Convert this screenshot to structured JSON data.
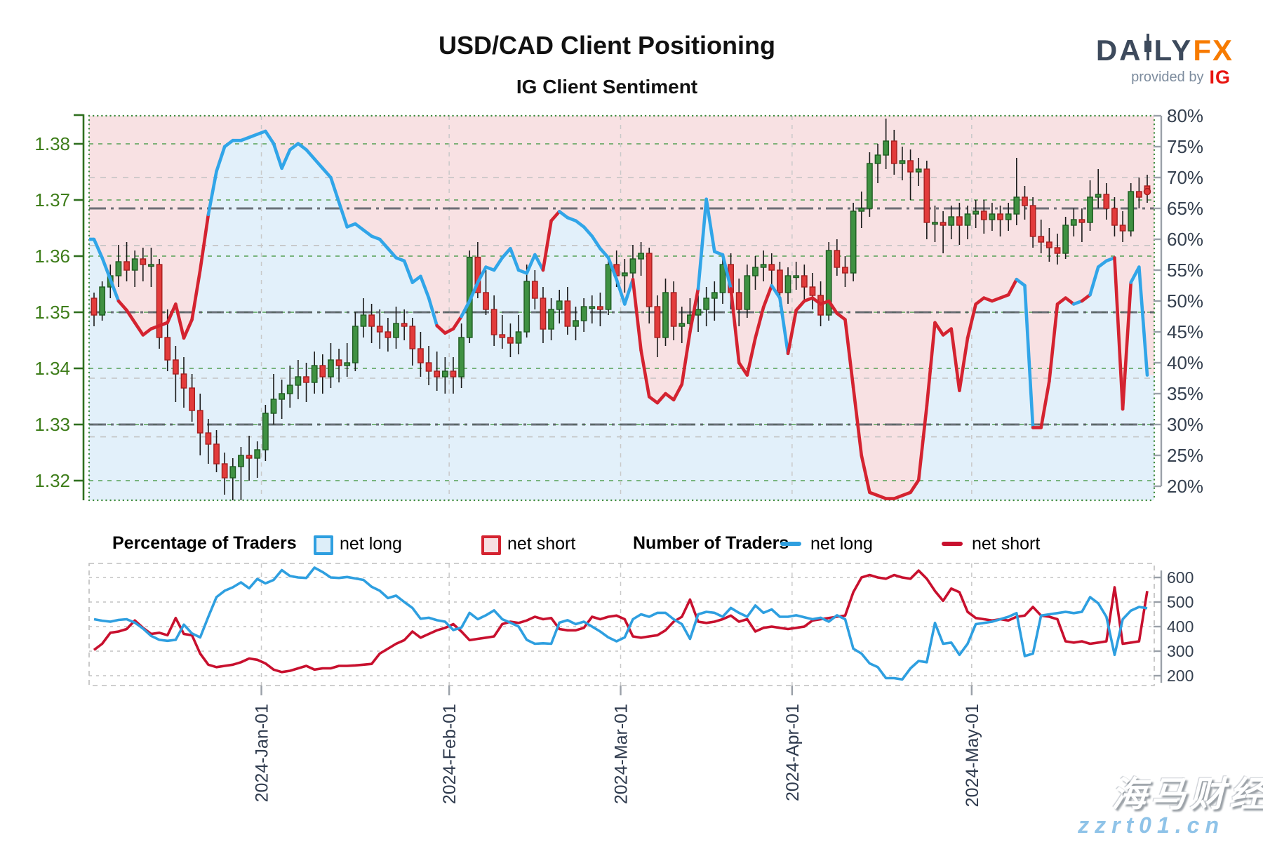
{
  "header": {
    "title": "USD/CAD Client Positioning",
    "subtitle": "IG Client Sentiment"
  },
  "logo": {
    "part1": "DA",
    "part2": "LY",
    "part3": "FX",
    "provided_by": "provided by",
    "ig": "IG"
  },
  "legend": {
    "pct_heading": "Percentage of Traders",
    "pct_long_label": "net long",
    "pct_short_label": "net short",
    "num_heading": "Number of Traders",
    "num_long_label": "net long",
    "num_short_label": "net short"
  },
  "watermark": {
    "line1": "海马财经",
    "line2": "zzrt01.cn"
  },
  "colors": {
    "candle_up_fill": "#3f9142",
    "candle_up_border": "#1e5c21",
    "candle_down_fill": "#e23b3b",
    "candle_down_border": "#a61f1f",
    "wick": "#1a1a1a",
    "sentiment_blue": "#31a5e8",
    "sentiment_red": "#d42330",
    "fill_above": "#f8e1e3",
    "fill_below": "#e2f0fa",
    "count_blue": "#2e9fe0",
    "count_red": "#c8102e",
    "grid_green": "#55a055",
    "grid_grey": "#c3c3c3",
    "ref_dark": "#565b63",
    "axis_green": "#2f6f1f",
    "label_green": "#3e7d1a",
    "label_navy": "#35404f",
    "border_green": "#3c8a3c"
  },
  "chart_data": {
    "type": "candlestick+line",
    "title": "USD/CAD Client Positioning",
    "subtitle": "IG Client Sentiment",
    "x_range": [
      "2023-12-01",
      "2024-05-30"
    ],
    "price_axis": {
      "side": "left",
      "ticks": [
        1.38,
        1.37,
        1.36,
        1.35,
        1.34,
        1.33,
        1.32
      ],
      "tick_labels": [
        "1.38",
        "1.37",
        "1.36",
        "1.35",
        "1.34",
        "1.33",
        "1.32"
      ]
    },
    "percent_axis": {
      "side": "right",
      "min": 20,
      "max": 80,
      "step": 5,
      "tick_labels": [
        "80%",
        "75%",
        "70%",
        "65%",
        "60%",
        "55%",
        "50%",
        "45%",
        "40%",
        "35%",
        "30%",
        "25%",
        "20%"
      ]
    },
    "count_axis": {
      "side": "right",
      "min": 200,
      "max": 600,
      "step": 100,
      "tick_labels": [
        "600",
        "500",
        "400",
        "300",
        "200"
      ]
    },
    "month_ticks": [
      "2024-Jan-01",
      "2024-Feb-01",
      "2024-Mar-01",
      "2024-Apr-01",
      "2024-May-01"
    ],
    "gridlines": {
      "price_green": [
        1.38,
        1.37,
        1.36,
        1.35,
        1.34,
        1.33,
        1.32
      ],
      "percent_grey": [
        70,
        59,
        37.5,
        28
      ]
    },
    "reference_lines_dashdot": {
      "percent": [
        65
      ],
      "price": [
        1.35,
        1.33
      ]
    },
    "candles": [
      [
        1.3525,
        1.3535,
        1.3475,
        1.3495
      ],
      [
        1.3495,
        1.3555,
        1.3485,
        1.3545
      ],
      [
        1.3545,
        1.3585,
        1.3525,
        1.3565
      ],
      [
        1.3565,
        1.362,
        1.3545,
        1.359
      ],
      [
        1.359,
        1.3625,
        1.3555,
        1.3575
      ],
      [
        1.3575,
        1.361,
        1.3545,
        1.3595
      ],
      [
        1.3595,
        1.3615,
        1.3555,
        1.3585
      ],
      [
        1.3585,
        1.3615,
        1.3545,
        1.3585
      ],
      [
        1.3585,
        1.3595,
        1.3435,
        1.3455
      ],
      [
        1.3455,
        1.3505,
        1.3395,
        1.3415
      ],
      [
        1.3415,
        1.344,
        1.334,
        1.339
      ],
      [
        1.339,
        1.342,
        1.333,
        1.3365
      ],
      [
        1.3365,
        1.339,
        1.3305,
        1.3325
      ],
      [
        1.3325,
        1.3355,
        1.3245,
        1.3285
      ],
      [
        1.3285,
        1.331,
        1.323,
        1.3265
      ],
      [
        1.3265,
        1.329,
        1.3215,
        1.323
      ],
      [
        1.323,
        1.325,
        1.3175,
        1.3205
      ],
      [
        1.3205,
        1.324,
        1.3165,
        1.3225
      ],
      [
        1.3225,
        1.326,
        1.3165,
        1.3245
      ],
      [
        1.3245,
        1.328,
        1.32,
        1.324
      ],
      [
        1.324,
        1.327,
        1.3205,
        1.3255
      ],
      [
        1.3255,
        1.3335,
        1.3235,
        1.332
      ],
      [
        1.332,
        1.339,
        1.33,
        1.3345
      ],
      [
        1.3345,
        1.338,
        1.331,
        1.3355
      ],
      [
        1.3355,
        1.3405,
        1.333,
        1.337
      ],
      [
        1.337,
        1.3415,
        1.3345,
        1.3385
      ],
      [
        1.3385,
        1.341,
        1.334,
        1.3375
      ],
      [
        1.3375,
        1.343,
        1.3355,
        1.3405
      ],
      [
        1.3405,
        1.3425,
        1.3355,
        1.3385
      ],
      [
        1.3385,
        1.3445,
        1.3365,
        1.3415
      ],
      [
        1.3415,
        1.3435,
        1.3375,
        1.3405
      ],
      [
        1.3405,
        1.3445,
        1.3385,
        1.341
      ],
      [
        1.341,
        1.35,
        1.3395,
        1.3475
      ],
      [
        1.3475,
        1.3525,
        1.3455,
        1.3495
      ],
      [
        1.3495,
        1.3515,
        1.3445,
        1.3475
      ],
      [
        1.3475,
        1.3505,
        1.3435,
        1.3465
      ],
      [
        1.3465,
        1.349,
        1.343,
        1.3455
      ],
      [
        1.3455,
        1.351,
        1.3435,
        1.348
      ],
      [
        1.348,
        1.3505,
        1.345,
        1.3475
      ],
      [
        1.3475,
        1.349,
        1.3405,
        1.3435
      ],
      [
        1.3435,
        1.3465,
        1.3385,
        1.341
      ],
      [
        1.341,
        1.344,
        1.337,
        1.3395
      ],
      [
        1.3395,
        1.343,
        1.336,
        1.3385
      ],
      [
        1.3385,
        1.342,
        1.3355,
        1.3395
      ],
      [
        1.3395,
        1.342,
        1.3355,
        1.3385
      ],
      [
        1.3385,
        1.348,
        1.3365,
        1.3455
      ],
      [
        1.3455,
        1.361,
        1.3445,
        1.3598
      ],
      [
        1.3598,
        1.3625,
        1.3525,
        1.3535
      ],
      [
        1.3535,
        1.3575,
        1.3495,
        1.3505
      ],
      [
        1.3505,
        1.353,
        1.344,
        1.346
      ],
      [
        1.346,
        1.3495,
        1.3435,
        1.3455
      ],
      [
        1.3455,
        1.348,
        1.342,
        1.3445
      ],
      [
        1.3445,
        1.3495,
        1.3425,
        1.3465
      ],
      [
        1.3465,
        1.3585,
        1.3455,
        1.3555
      ],
      [
        1.3555,
        1.3575,
        1.3505,
        1.3525
      ],
      [
        1.3525,
        1.3545,
        1.3445,
        1.347
      ],
      [
        1.347,
        1.3525,
        1.345,
        1.3505
      ],
      [
        1.3505,
        1.354,
        1.348,
        1.352
      ],
      [
        1.352,
        1.3545,
        1.346,
        1.3475
      ],
      [
        1.3475,
        1.351,
        1.345,
        1.3485
      ],
      [
        1.3485,
        1.3525,
        1.3465,
        1.351
      ],
      [
        1.351,
        1.353,
        1.348,
        1.351
      ],
      [
        1.351,
        1.3535,
        1.3475,
        1.3505
      ],
      [
        1.3505,
        1.36,
        1.3495,
        1.3585
      ],
      [
        1.3585,
        1.361,
        1.3545,
        1.3565
      ],
      [
        1.3565,
        1.3595,
        1.3535,
        1.357
      ],
      [
        1.357,
        1.362,
        1.3555,
        1.3595
      ],
      [
        1.3595,
        1.3625,
        1.3565,
        1.3605
      ],
      [
        1.3605,
        1.3615,
        1.348,
        1.351
      ],
      [
        1.351,
        1.353,
        1.342,
        1.3455
      ],
      [
        1.3455,
        1.356,
        1.344,
        1.3535
      ],
      [
        1.3535,
        1.3555,
        1.345,
        1.3475
      ],
      [
        1.3475,
        1.351,
        1.3445,
        1.348
      ],
      [
        1.348,
        1.3525,
        1.346,
        1.3495
      ],
      [
        1.3495,
        1.353,
        1.3465,
        1.3505
      ],
      [
        1.3505,
        1.3545,
        1.3475,
        1.3525
      ],
      [
        1.3525,
        1.3555,
        1.3485,
        1.3535
      ],
      [
        1.3535,
        1.3605,
        1.3515,
        1.3585
      ],
      [
        1.3585,
        1.3605,
        1.3505,
        1.3535
      ],
      [
        1.3535,
        1.356,
        1.3475,
        1.3505
      ],
      [
        1.3505,
        1.3585,
        1.349,
        1.3565
      ],
      [
        1.3565,
        1.36,
        1.354,
        1.358
      ],
      [
        1.358,
        1.361,
        1.3555,
        1.3585
      ],
      [
        1.3585,
        1.3605,
        1.355,
        1.3575
      ],
      [
        1.3575,
        1.359,
        1.351,
        1.3535
      ],
      [
        1.3535,
        1.358,
        1.3515,
        1.3565
      ],
      [
        1.3565,
        1.359,
        1.354,
        1.3565
      ],
      [
        1.3565,
        1.3585,
        1.352,
        1.3545
      ],
      [
        1.3545,
        1.357,
        1.3505,
        1.353
      ],
      [
        1.353,
        1.3555,
        1.3475,
        1.3495
      ],
      [
        1.3495,
        1.3625,
        1.3485,
        1.361
      ],
      [
        1.361,
        1.363,
        1.3565,
        1.358
      ],
      [
        1.358,
        1.36,
        1.3545,
        1.357
      ],
      [
        1.357,
        1.3695,
        1.3555,
        1.368
      ],
      [
        1.368,
        1.3715,
        1.365,
        1.3685
      ],
      [
        1.3685,
        1.3785,
        1.367,
        1.3765
      ],
      [
        1.3765,
        1.38,
        1.373,
        1.378
      ],
      [
        1.378,
        1.3845,
        1.3755,
        1.3805
      ],
      [
        1.3805,
        1.3825,
        1.3745,
        1.3765
      ],
      [
        1.3765,
        1.3795,
        1.3735,
        1.377
      ],
      [
        1.377,
        1.379,
        1.37,
        1.375
      ],
      [
        1.375,
        1.3775,
        1.3725,
        1.3755
      ],
      [
        1.3755,
        1.377,
        1.363,
        1.366
      ],
      [
        1.366,
        1.369,
        1.3625,
        1.366
      ],
      [
        1.366,
        1.368,
        1.3605,
        1.3655
      ],
      [
        1.3655,
        1.369,
        1.363,
        1.367
      ],
      [
        1.367,
        1.3695,
        1.362,
        1.3655
      ],
      [
        1.3655,
        1.369,
        1.363,
        1.3675
      ],
      [
        1.3675,
        1.37,
        1.365,
        1.368
      ],
      [
        1.368,
        1.37,
        1.364,
        1.3665
      ],
      [
        1.3665,
        1.3695,
        1.3645,
        1.3675
      ],
      [
        1.3675,
        1.369,
        1.3635,
        1.3665
      ],
      [
        1.3665,
        1.3695,
        1.3645,
        1.3675
      ],
      [
        1.3675,
        1.3775,
        1.3655,
        1.3705
      ],
      [
        1.3705,
        1.3725,
        1.3665,
        1.369
      ],
      [
        1.369,
        1.3705,
        1.3615,
        1.3635
      ],
      [
        1.3635,
        1.3665,
        1.3605,
        1.3625
      ],
      [
        1.3625,
        1.365,
        1.359,
        1.3615
      ],
      [
        1.3615,
        1.364,
        1.3585,
        1.3605
      ],
      [
        1.3605,
        1.367,
        1.3595,
        1.3655
      ],
      [
        1.3655,
        1.3685,
        1.3635,
        1.3665
      ],
      [
        1.3665,
        1.3685,
        1.3625,
        1.366
      ],
      [
        1.366,
        1.3735,
        1.3645,
        1.3705
      ],
      [
        1.3705,
        1.3755,
        1.3685,
        1.371
      ],
      [
        1.371,
        1.373,
        1.3665,
        1.3685
      ],
      [
        1.3685,
        1.3705,
        1.3635,
        1.3655
      ],
      [
        1.3655,
        1.368,
        1.3625,
        1.3645
      ],
      [
        1.3645,
        1.373,
        1.3635,
        1.3715
      ],
      [
        1.3715,
        1.374,
        1.3685,
        1.3705
      ],
      [
        1.3725,
        1.3745,
        1.3695,
        1.3715
      ]
    ],
    "sentiment_pct": [
      60,
      57,
      53.5,
      50,
      48.5,
      46.5,
      44.5,
      45.5,
      46,
      46.5,
      49.5,
      44,
      47,
      55,
      64,
      71,
      75,
      76,
      76,
      76.5,
      77,
      77.5,
      75.5,
      71.5,
      74.5,
      75.5,
      74.5,
      73,
      71.5,
      70,
      66,
      62,
      62.5,
      61.5,
      60.5,
      60,
      58.5,
      57,
      56.5,
      53,
      54,
      50.5,
      46,
      44.8,
      45.5,
      47.5,
      50,
      53,
      55.5,
      55,
      57,
      58.5,
      55,
      54.5,
      57.5,
      55,
      63,
      64.5,
      63.5,
      63,
      62,
      60.5,
      58.5,
      57,
      53.5,
      49.5,
      53.5,
      42,
      34.5,
      33.5,
      35,
      34,
      36.5,
      45,
      52,
      66.5,
      58,
      57.5,
      52,
      40,
      38,
      44,
      49,
      52.5,
      50.5,
      41.5,
      48.5,
      50,
      50.5,
      49.5,
      50,
      48,
      47,
      36,
      25,
      19,
      18.5,
      18,
      18,
      18.5,
      19,
      21,
      33,
      46.5,
      44.5,
      45.5,
      35.5,
      44,
      49.5,
      50.5,
      50,
      50.5,
      51,
      53.5,
      52.5,
      29.5,
      29.5,
      37,
      49.5,
      50.5,
      49.5,
      50,
      51,
      55.5,
      56.5,
      57,
      32.5,
      53,
      55.5,
      38
    ],
    "sentiment_color": [
      "b",
      "b",
      "b",
      "r",
      "r",
      "r",
      "r",
      "r",
      "r",
      "r",
      "r",
      "r",
      "r",
      "r",
      "b",
      "b",
      "b",
      "b",
      "b",
      "b",
      "b",
      "b",
      "b",
      "b",
      "b",
      "b",
      "b",
      "b",
      "b",
      "b",
      "b",
      "b",
      "b",
      "b",
      "b",
      "b",
      "b",
      "b",
      "b",
      "b",
      "b",
      "b",
      "r",
      "r",
      "r",
      "b",
      "b",
      "b",
      "b",
      "b",
      "b",
      "b",
      "b",
      "b",
      "b",
      "r",
      "r",
      "b",
      "b",
      "b",
      "b",
      "b",
      "b",
      "b",
      "b",
      "b",
      "r",
      "r",
      "r",
      "r",
      "r",
      "r",
      "r",
      "r",
      "b",
      "b",
      "b",
      "b",
      "r",
      "r",
      "r",
      "r",
      "r",
      "b",
      "b",
      "r",
      "r",
      "r",
      "r",
      "r",
      "r",
      "r",
      "r",
      "r",
      "r",
      "r",
      "r",
      "r",
      "r",
      "r",
      "r",
      "r",
      "r",
      "r",
      "r",
      "r",
      "r",
      "r",
      "r",
      "r",
      "r",
      "r",
      "r",
      "b",
      "b",
      "r",
      "r",
      "r",
      "r",
      "r",
      "b",
      "r",
      "b",
      "b",
      "b",
      "r",
      "r",
      "b",
      "b",
      "b"
    ],
    "traders_long": [
      430,
      424,
      420,
      427,
      430,
      416,
      392,
      362,
      346,
      342,
      346,
      408,
      372,
      356,
      440,
      520,
      546,
      560,
      580,
      556,
      594,
      576,
      590,
      630,
      606,
      600,
      598,
      640,
      622,
      600,
      598,
      602,
      596,
      590,
      562,
      546,
      516,
      526,
      500,
      476,
      432,
      436,
      426,
      420,
      386,
      396,
      456,
      430,
      446,
      466,
      430,
      416,
      400,
      346,
      330,
      332,
      330,
      416,
      426,
      410,
      420,
      400,
      380,
      356,
      340,
      356,
      430,
      450,
      440,
      456,
      456,
      430,
      410,
      350,
      450,
      460,
      456,
      440,
      476,
      456,
      440,
      486,
      456,
      470,
      440,
      440,
      446,
      438,
      430,
      436,
      420,
      446,
      430,
      310,
      290,
      250,
      235,
      190,
      190,
      185,
      230,
      260,
      255,
      415,
      330,
      335,
      285,
      330,
      410,
      415,
      420,
      430,
      440,
      455,
      280,
      290,
      445,
      450,
      455,
      460,
      455,
      460,
      520,
      495,
      440,
      285,
      430,
      465,
      480,
      475
    ],
    "traders_short": [
      305,
      330,
      375,
      380,
      390,
      425,
      395,
      370,
      375,
      365,
      435,
      370,
      365,
      290,
      245,
      235,
      240,
      245,
      255,
      270,
      265,
      250,
      225,
      215,
      220,
      230,
      240,
      225,
      230,
      230,
      240,
      240,
      242,
      245,
      248,
      290,
      310,
      330,
      345,
      380,
      355,
      370,
      385,
      395,
      410,
      380,
      345,
      350,
      355,
      360,
      410,
      420,
      415,
      425,
      440,
      430,
      435,
      390,
      385,
      385,
      395,
      440,
      430,
      440,
      445,
      430,
      360,
      355,
      360,
      365,
      385,
      420,
      440,
      510,
      420,
      415,
      420,
      430,
      445,
      420,
      430,
      380,
      395,
      400,
      395,
      390,
      395,
      400,
      425,
      430,
      435,
      440,
      445,
      540,
      600,
      610,
      600,
      595,
      610,
      600,
      595,
      628,
      595,
      545,
      505,
      555,
      540,
      460,
      435,
      430,
      425,
      430,
      425,
      440,
      445,
      480,
      445,
      440,
      430,
      340,
      335,
      340,
      330,
      335,
      340,
      560,
      330,
      335,
      340,
      545
    ]
  }
}
